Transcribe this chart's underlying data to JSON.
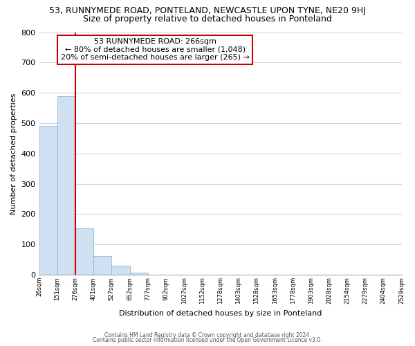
{
  "title": "53, RUNNYMEDE ROAD, PONTELAND, NEWCASTLE UPON TYNE, NE20 9HJ",
  "subtitle": "Size of property relative to detached houses in Ponteland",
  "bar_values": [
    490,
    590,
    153,
    62,
    30,
    8,
    0,
    0,
    0,
    0,
    0,
    0,
    0,
    0,
    0,
    0,
    0,
    0,
    0,
    0
  ],
  "x_labels": [
    "26sqm",
    "151sqm",
    "276sqm",
    "401sqm",
    "527sqm",
    "652sqm",
    "777sqm",
    "902sqm",
    "1027sqm",
    "1152sqm",
    "1278sqm",
    "1403sqm",
    "1528sqm",
    "1653sqm",
    "1778sqm",
    "1903sqm",
    "2028sqm",
    "2154sqm",
    "2279sqm",
    "2404sqm",
    "2529sqm"
  ],
  "bar_color": "#cfe0f0",
  "bar_edgecolor": "#7bafd4",
  "vline_color": "#cc0000",
  "ylabel": "Number of detached properties",
  "xlabel": "Distribution of detached houses by size in Ponteland",
  "ylim": [
    0,
    800
  ],
  "yticks": [
    0,
    100,
    200,
    300,
    400,
    500,
    600,
    700,
    800
  ],
  "annotation_title": "53 RUNNYMEDE ROAD: 266sqm",
  "annotation_line1": "← 80% of detached houses are smaller (1,048)",
  "annotation_line2": "20% of semi-detached houses are larger (265) →",
  "annotation_box_color": "#ffffff",
  "annotation_box_edgecolor": "#cc0000",
  "footer1": "Contains HM Land Registry data © Crown copyright and database right 2024.",
  "footer2": "Contains public sector information licensed under the Open Government Licence v3.0.",
  "background_color": "#ffffff",
  "grid_color": "#ccd8ea",
  "title_fontsize": 9,
  "subtitle_fontsize": 9
}
